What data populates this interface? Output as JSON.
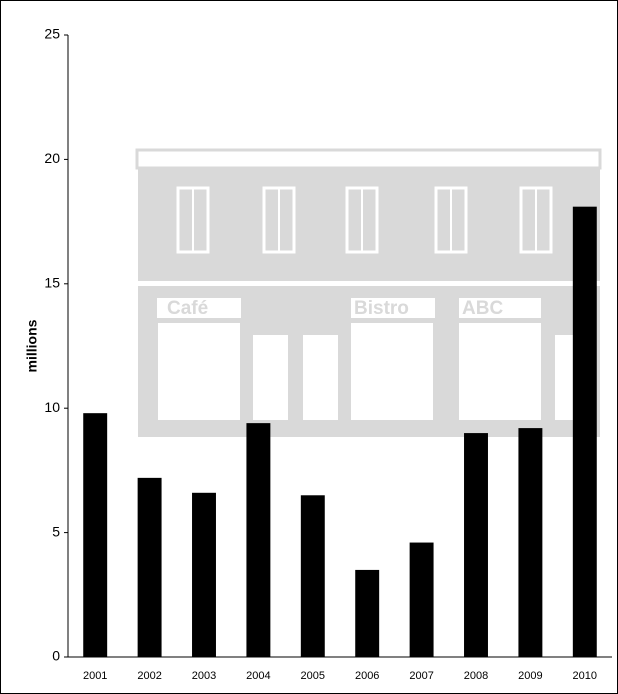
{
  "chart_data": {
    "type": "bar",
    "y_label": "millions",
    "categories": [
      "2001",
      "2002",
      "2003",
      "2004",
      "2005",
      "2006",
      "2007",
      "2008",
      "2009",
      "2010"
    ],
    "values": [
      9.8,
      7.2,
      6.6,
      9.4,
      6.5,
      3.5,
      4.6,
      9.0,
      9.2,
      18.1
    ],
    "color": "#000000",
    "ylim": [
      0,
      25
    ],
    "yticks": [
      0,
      5,
      10,
      15,
      20,
      25
    ],
    "background_signs": [
      "Café",
      "Bistro",
      "ABC"
    ]
  }
}
